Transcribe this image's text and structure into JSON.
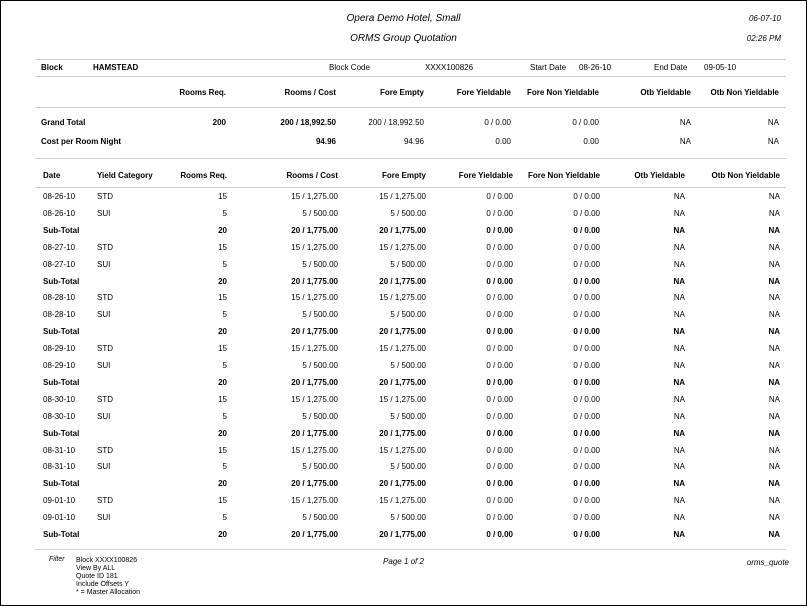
{
  "header": {
    "hotel": "Opera Demo Hotel, Small",
    "report": "ORMS Group Quotation",
    "date": "06-07-10",
    "time": "02:26 PM"
  },
  "block": {
    "label": "Block",
    "name": "HAMSTEAD",
    "code_label": "Block Code",
    "code": "XXXX100826",
    "start_label": "Start Date",
    "start": "08-26-10",
    "end_label": "End Date",
    "end": "09-05-10"
  },
  "summary": {
    "headers": [
      "Rooms Req.",
      "Rooms / Cost",
      "Fore Empty",
      "Fore Yieldable",
      "Fore Non Yieldable",
      "Otb Yieldable",
      "Otb Non Yieldable"
    ],
    "rows": [
      [
        "Grand Total",
        "200",
        "200 / 18,992.50",
        "200 / 18,992.50",
        "0 / 0.00",
        "0 / 0.00",
        "NA",
        "NA"
      ],
      [
        "Cost per Room Night",
        null,
        "94.96",
        "94.96",
        "0.00",
        "0.00",
        "NA",
        "NA"
      ]
    ]
  },
  "detail": {
    "headers": [
      "Date",
      "Yield Category",
      "Rooms Req.",
      "Rooms / Cost",
      "Fore Empty",
      "Fore Yieldable",
      "Fore Non Yieldable",
      "Otb Yieldable",
      "Otb Non Yieldable"
    ],
    "rows": [
      [
        "08-26-10",
        "STD",
        "15",
        "15 / 1,275.00",
        "15 / 1,275.00",
        "0 / 0.00",
        "0 / 0.00",
        "NA",
        "NA"
      ],
      [
        "08-26-10",
        "SUI",
        "5",
        "5 / 500.00",
        "5 / 500.00",
        "0 / 0.00",
        "0 / 0.00",
        "NA",
        "NA"
      ],
      [
        "Sub-Total",
        null,
        "20",
        "20 / 1,775.00",
        "20 / 1,775.00",
        "0 / 0.00",
        "0 / 0.00",
        "NA",
        "NA"
      ],
      [
        "08-27-10",
        "STD",
        "15",
        "15 / 1,275.00",
        "15 / 1,275.00",
        "0 / 0.00",
        "0 / 0.00",
        "NA",
        "NA"
      ],
      [
        "08-27-10",
        "SUI",
        "5",
        "5 / 500.00",
        "5 / 500.00",
        "0 / 0.00",
        "0 / 0.00",
        "NA",
        "NA"
      ],
      [
        "Sub-Total",
        null,
        "20",
        "20 / 1,775.00",
        "20 / 1,775.00",
        "0 / 0.00",
        "0 / 0.00",
        "NA",
        "NA"
      ],
      [
        "08-28-10",
        "STD",
        "15",
        "15 / 1,275.00",
        "15 / 1,275.00",
        "0 / 0.00",
        "0 / 0.00",
        "NA",
        "NA"
      ],
      [
        "08-28-10",
        "SUI",
        "5",
        "5 / 500.00",
        "5 / 500.00",
        "0 / 0.00",
        "0 / 0.00",
        "NA",
        "NA"
      ],
      [
        "Sub-Total",
        null,
        "20",
        "20 / 1,775.00",
        "20 / 1,775.00",
        "0 / 0.00",
        "0 / 0.00",
        "NA",
        "NA"
      ],
      [
        "08-29-10",
        "STD",
        "15",
        "15 / 1,275.00",
        "15 / 1,275.00",
        "0 / 0.00",
        "0 / 0.00",
        "NA",
        "NA"
      ],
      [
        "08-29-10",
        "SUI",
        "5",
        "5 / 500.00",
        "5 / 500.00",
        "0 / 0.00",
        "0 / 0.00",
        "NA",
        "NA"
      ],
      [
        "Sub-Total",
        null,
        "20",
        "20 / 1,775.00",
        "20 / 1,775.00",
        "0 / 0.00",
        "0 / 0.00",
        "NA",
        "NA"
      ],
      [
        "08-30-10",
        "STD",
        "15",
        "15 / 1,275.00",
        "15 / 1,275.00",
        "0 / 0.00",
        "0 / 0.00",
        "NA",
        "NA"
      ],
      [
        "08-30-10",
        "SUI",
        "5",
        "5 / 500.00",
        "5 / 500.00",
        "0 / 0.00",
        "0 / 0.00",
        "NA",
        "NA"
      ],
      [
        "Sub-Total",
        null,
        "20",
        "20 / 1,775.00",
        "20 / 1,775.00",
        "0 / 0.00",
        "0 / 0.00",
        "NA",
        "NA"
      ],
      [
        "08-31-10",
        "STD",
        "15",
        "15 / 1,275.00",
        "15 / 1,275.00",
        "0 / 0.00",
        "0 / 0.00",
        "NA",
        "NA"
      ],
      [
        "08-31-10",
        "SUI",
        "5",
        "5 / 500.00",
        "5 / 500.00",
        "0 / 0.00",
        "0 / 0.00",
        "NA",
        "NA"
      ],
      [
        "Sub-Total",
        null,
        "20",
        "20 / 1,775.00",
        "20 / 1,775.00",
        "0 / 0.00",
        "0 / 0.00",
        "NA",
        "NA"
      ],
      [
        "09-01-10",
        "STD",
        "15",
        "15 / 1,275.00",
        "15 / 1,275.00",
        "0 / 0.00",
        "0 / 0.00",
        "NA",
        "NA"
      ],
      [
        "09-01-10",
        "SUI",
        "5",
        "5 / 500.00",
        "5 / 500.00",
        "0 / 0.00",
        "0 / 0.00",
        "NA",
        "NA"
      ],
      [
        "Sub-Total",
        null,
        "20",
        "20 / 1,775.00",
        "20 / 1,775.00",
        "0 / 0.00",
        "0 / 0.00",
        "NA",
        "NA"
      ]
    ]
  },
  "footer": {
    "filter_label": "Filter",
    "filters": [
      "Block XXXX100826",
      "View By ALL",
      "Quote ID 181",
      "Include Offsets Y",
      "* = Master Allocation"
    ],
    "page": "Page 1 of 2",
    "report_id": "orms_quote"
  }
}
